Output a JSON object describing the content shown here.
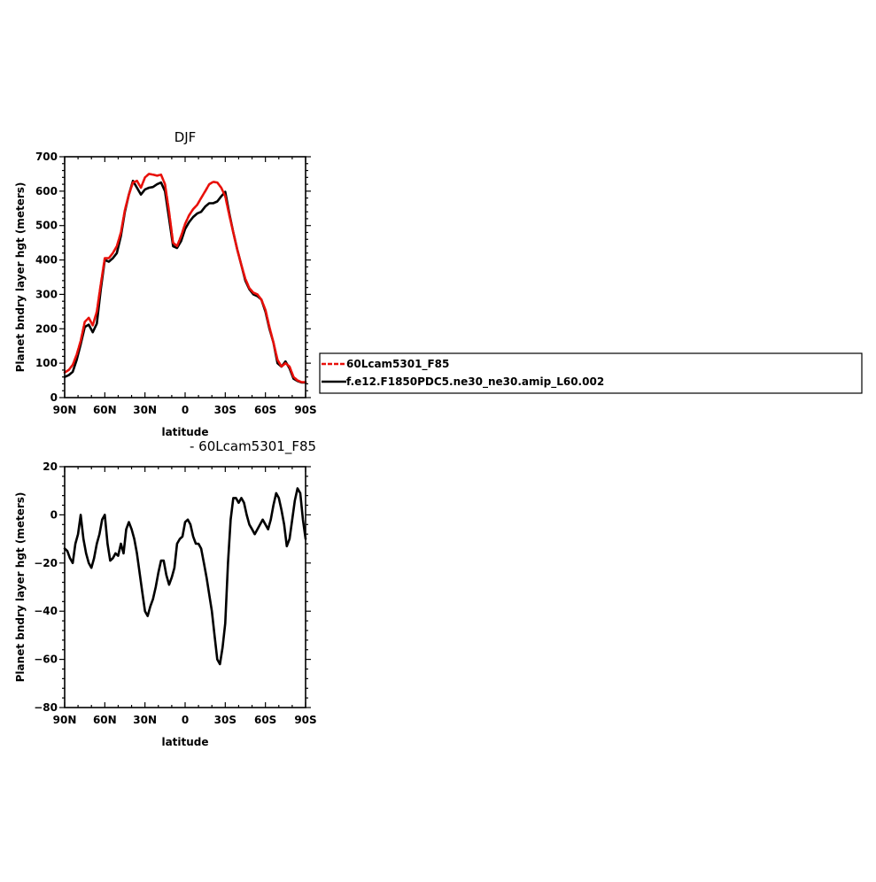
{
  "colors": {
    "red_series": "#e8100a",
    "black_series": "#000000",
    "background": "#ffffff"
  },
  "chart_data": [
    {
      "type": "line",
      "title": "DJF",
      "xlabel": "latitude",
      "ylabel": "Planet bndry layer hgt (meters)",
      "xlim": [
        90,
        -90
      ],
      "ylim": [
        0,
        700
      ],
      "x_tick_values": [
        90,
        60,
        30,
        0,
        -30,
        -60,
        -90
      ],
      "x_tick_labels": [
        "90N",
        "60N",
        "30N",
        "0",
        "30S",
        "60S",
        "90S"
      ],
      "y_tick_values": [
        0,
        100,
        200,
        300,
        400,
        500,
        600,
        700
      ],
      "y_tick_labels": [
        "0",
        "100",
        "200",
        "300",
        "400",
        "500",
        "600",
        "700"
      ],
      "legend": {
        "position": "right",
        "entries": [
          "60Lcam5301_F85",
          "f.e12.F1850PDC5.ne30_ne30.amip_L60.002"
        ]
      },
      "x": [
        90,
        87,
        84,
        81,
        78,
        75,
        72,
        69,
        66,
        63,
        60,
        57,
        54,
        51,
        48,
        45,
        42,
        39,
        36,
        33,
        30,
        27,
        24,
        21,
        18,
        15,
        12,
        9,
        6,
        3,
        0,
        -3,
        -6,
        -9,
        -12,
        -15,
        -18,
        -21,
        -24,
        -27,
        -30,
        -33,
        -36,
        -39,
        -42,
        -45,
        -48,
        -51,
        -54,
        -57,
        -60,
        -63,
        -66,
        -69,
        -72,
        -75,
        -78,
        -81,
        -84,
        -87,
        -90
      ],
      "series": [
        {
          "name": "60Lcam5301_F85",
          "color": "#e8100a",
          "dash": "dashed",
          "values": [
            73,
            80,
            95,
            125,
            165,
            220,
            232,
            210,
            250,
            330,
            405,
            405,
            420,
            440,
            480,
            545,
            590,
            625,
            630,
            610,
            640,
            650,
            648,
            645,
            648,
            620,
            540,
            450,
            440,
            470,
            505,
            530,
            548,
            560,
            580,
            600,
            620,
            627,
            625,
            610,
            585,
            530,
            480,
            430,
            385,
            345,
            318,
            305,
            300,
            285,
            255,
            205,
            160,
            110,
            90,
            100,
            90,
            60,
            50,
            45,
            45
          ]
        },
        {
          "name": "f.e12.F1850PDC5.ne30_ne30.amip_L60.002",
          "color": "#000000",
          "dash": "solid",
          "values": [
            60,
            65,
            75,
            110,
            155,
            205,
            212,
            190,
            215,
            315,
            400,
            395,
            405,
            420,
            470,
            540,
            590,
            630,
            610,
            590,
            605,
            610,
            612,
            620,
            625,
            600,
            520,
            440,
            435,
            455,
            490,
            510,
            525,
            535,
            540,
            555,
            565,
            565,
            570,
            585,
            598,
            535,
            480,
            430,
            385,
            340,
            315,
            300,
            295,
            285,
            250,
            200,
            160,
            100,
            90,
            105,
            85,
            55,
            48,
            44,
            44
          ]
        }
      ]
    },
    {
      "type": "line",
      "title": "- 60Lcam5301_F85",
      "xlabel": "latitude",
      "ylabel": "Planet bndry layer hgt (meters)",
      "xlim": [
        90,
        -90
      ],
      "ylim": [
        -80,
        20
      ],
      "x_tick_values": [
        90,
        60,
        30,
        0,
        -30,
        -60,
        -90
      ],
      "x_tick_labels": [
        "90N",
        "60N",
        "30N",
        "0",
        "30S",
        "60S",
        "90S"
      ],
      "y_tick_values": [
        -80,
        -60,
        -40,
        -20,
        0,
        20
      ],
      "y_tick_labels": [
        "−80",
        "−60",
        "−40",
        "−20",
        "0",
        "20"
      ],
      "x": [
        90,
        88,
        86,
        84,
        82,
        80,
        78,
        76,
        74,
        72,
        70,
        68,
        66,
        64,
        62,
        60,
        58,
        56,
        54,
        52,
        50,
        48,
        46,
        44,
        42,
        40,
        38,
        36,
        34,
        32,
        30,
        28,
        26,
        24,
        22,
        20,
        18,
        16,
        14,
        12,
        10,
        8,
        6,
        4,
        2,
        0,
        -2,
        -4,
        -6,
        -8,
        -10,
        -12,
        -14,
        -16,
        -18,
        -20,
        -22,
        -24,
        -26,
        -28,
        -30,
        -32,
        -34,
        -36,
        -38,
        -40,
        -42,
        -44,
        -46,
        -48,
        -50,
        -52,
        -54,
        -56,
        -58,
        -60,
        -62,
        -64,
        -66,
        -68,
        -70,
        -72,
        -74,
        -76,
        -78,
        -80,
        -82,
        -84,
        -86,
        -88,
        -90
      ],
      "series": [
        {
          "name": "",
          "color": "#000000",
          "dash": "solid",
          "values": [
            -14,
            -15,
            -18,
            -20,
            -12,
            -8,
            0,
            -10,
            -16,
            -20,
            -22,
            -18,
            -12,
            -8,
            -2,
            0,
            -12,
            -19,
            -18,
            -16,
            -17,
            -12,
            -16,
            -6,
            -3,
            -6,
            -10,
            -16,
            -24,
            -32,
            -40,
            -42,
            -38,
            -35,
            -30,
            -24,
            -19,
            -19,
            -25,
            -29,
            -26,
            -22,
            -12,
            -10,
            -9,
            -3,
            -2,
            -4,
            -9,
            -12,
            -12,
            -14,
            -20,
            -26,
            -33,
            -40,
            -50,
            -60,
            -62,
            -55,
            -45,
            -20,
            -2,
            7,
            7,
            5,
            7,
            5,
            0,
            -4,
            -6,
            -8,
            -6,
            -4,
            -2,
            -4,
            -6,
            -2,
            4,
            9,
            7,
            2,
            -4,
            -13,
            -10,
            -2,
            6,
            11,
            9,
            -2,
            -10
          ]
        }
      ]
    }
  ]
}
